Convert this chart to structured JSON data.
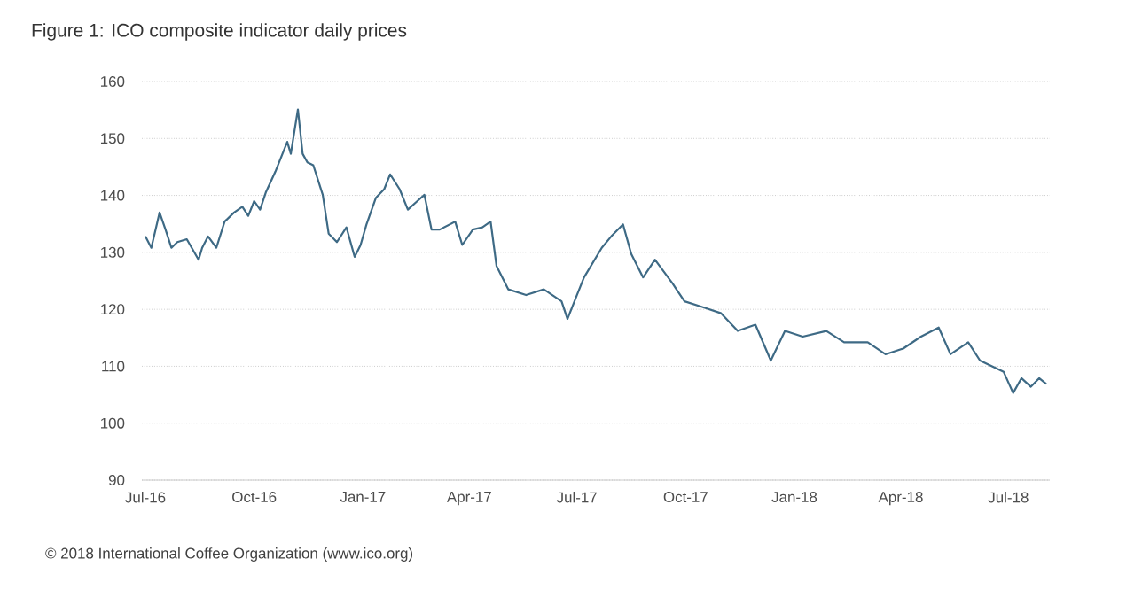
{
  "chart_data": {
    "type": "line",
    "title": "Figure 1: ICO composite indicator daily prices",
    "annotations": [
      "© 2018 International Coffee Organization (www.ico.org)"
    ],
    "x": [
      "2016-07-01",
      "2016-07-06",
      "2016-07-13",
      "2016-07-18",
      "2016-07-23",
      "2016-07-28",
      "2016-08-05",
      "2016-08-15",
      "2016-08-18",
      "2016-08-23",
      "2016-08-30",
      "2016-09-06",
      "2016-09-14",
      "2016-09-21",
      "2016-09-26",
      "2016-10-01",
      "2016-10-06",
      "2016-10-11",
      "2016-10-19",
      "2016-10-23",
      "2016-10-29",
      "2016-11-01",
      "2016-11-07",
      "2016-11-11",
      "2016-11-15",
      "2016-11-20",
      "2016-11-28",
      "2016-12-03",
      "2016-12-10",
      "2016-12-18",
      "2016-12-25",
      "2016-12-30",
      "2017-01-04",
      "2017-01-12",
      "2017-01-19",
      "2017-01-24",
      "2017-02-01",
      "2017-02-08",
      "2017-02-16",
      "2017-02-22",
      "2017-02-28",
      "2017-03-07",
      "2017-03-20",
      "2017-03-26",
      "2017-04-04",
      "2017-04-12",
      "2017-04-19",
      "2017-04-24",
      "2017-05-04",
      "2017-05-19",
      "2017-06-03",
      "2017-06-18",
      "2017-06-23",
      "2017-07-01",
      "2017-07-07",
      "2017-07-22",
      "2017-07-30",
      "2017-08-09",
      "2017-08-16",
      "2017-08-26",
      "2017-09-05",
      "2017-09-20",
      "2017-09-30",
      "2017-10-15",
      "2017-10-31",
      "2017-11-14",
      "2017-11-29",
      "2017-12-12",
      "2017-12-24",
      "2018-01-08",
      "2018-01-28",
      "2018-02-12",
      "2018-03-04",
      "2018-03-19",
      "2018-04-03",
      "2018-04-18",
      "2018-05-03",
      "2018-05-13",
      "2018-05-28",
      "2018-06-07",
      "2018-06-17",
      "2018-06-27",
      "2018-07-05",
      "2018-07-12",
      "2018-07-20",
      "2018-07-27",
      "2018-08-02"
    ],
    "series": [
      {
        "color": "#3e6a85",
        "values": [
          132.8,
          130.8,
          137,
          134,
          130.8,
          131.8,
          132.3,
          128.7,
          130.8,
          132.8,
          130.8,
          135.4,
          137,
          138,
          136.4,
          139,
          137.5,
          140.6,
          144.2,
          146.3,
          149.4,
          147.3,
          155.1,
          147.3,
          145.8,
          145.3,
          140.1,
          133.3,
          131.8,
          134.4,
          129.2,
          131.3,
          134.9,
          139.6,
          141.1,
          143.7,
          141.1,
          137.5,
          139,
          140.1,
          134,
          134,
          135.4,
          131.3,
          134,
          134.4,
          135.4,
          127.6,
          123.5,
          122.5,
          123.5,
          121.4,
          118.3,
          122.5,
          125.6,
          130.8,
          132.8,
          134.9,
          129.7,
          125.6,
          128.7,
          124.5,
          121.4,
          120.4,
          119.3,
          116.2,
          117.3,
          111,
          116.2,
          115.2,
          116.2,
          114.2,
          114.2,
          112.1,
          113.1,
          115.2,
          116.8,
          112.1,
          114.2,
          111,
          110,
          109,
          105.3,
          107.9,
          106.4,
          107.9,
          106.9
        ]
      }
    ],
    "xlim": [
      "2016-06-28",
      "2018-08-05"
    ],
    "xticks": [
      {
        "value": "2016-07-01",
        "label": "Jul-16"
      },
      {
        "value": "2016-10-01",
        "label": "Oct-16"
      },
      {
        "value": "2017-01-01",
        "label": "Jan-17"
      },
      {
        "value": "2017-04-01",
        "label": "Apr-17"
      },
      {
        "value": "2017-07-01",
        "label": "Jul-17"
      },
      {
        "value": "2017-10-01",
        "label": "Oct-17"
      },
      {
        "value": "2018-01-01",
        "label": "Jan-18"
      },
      {
        "value": "2018-04-01",
        "label": "Apr-18"
      },
      {
        "value": "2018-07-01",
        "label": "Jul-18"
      }
    ],
    "ylim": [
      90,
      160
    ],
    "yticks": [
      90,
      100,
      110,
      120,
      130,
      140,
      150,
      160
    ],
    "grid": "y"
  }
}
